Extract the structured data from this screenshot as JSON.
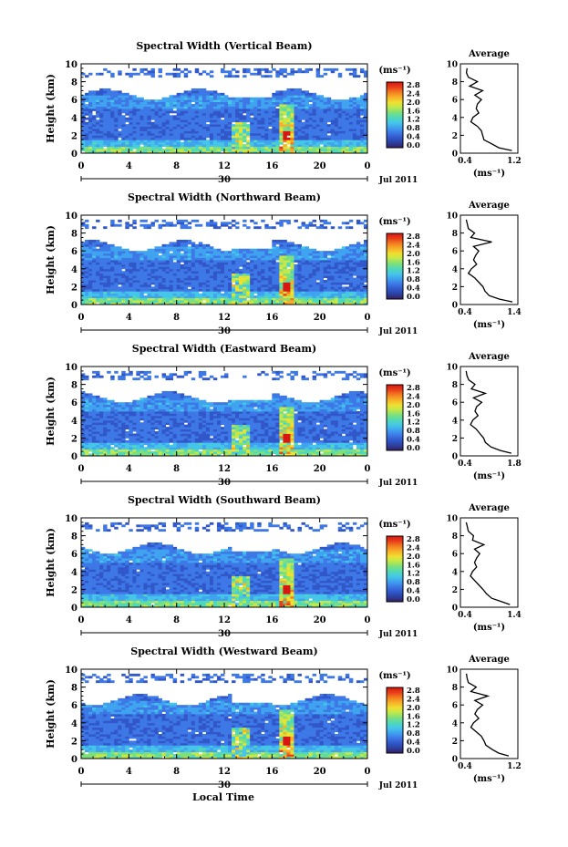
{
  "figure": {
    "shared_x_label": "Local Time",
    "date_label": "Jul 2011",
    "day_label": "30"
  },
  "colorbar": {
    "unit": "(ms⁻¹)",
    "ticks": [
      "0.0",
      "0.4",
      "0.8",
      "1.2",
      "1.6",
      "2.0",
      "2.4",
      "2.8"
    ],
    "colors": [
      "#3a1c5c",
      "#2b3f9e",
      "#3157c9",
      "#3d78e6",
      "#3fa3f0",
      "#45c6e8",
      "#50d9b8",
      "#7ee07a",
      "#c2e84a",
      "#f0e030",
      "#f7b028",
      "#f37a1f",
      "#e8401a",
      "#d81612"
    ],
    "range": [
      0.0,
      3.0
    ]
  },
  "panels": [
    {
      "title": "Spectral Width (Vertical Beam)",
      "avg_title": "Average",
      "avg_xlabel": "(ms⁻¹)",
      "avg_ticks": [
        "0.4",
        "1.2"
      ]
    },
    {
      "title": "Spectral Width (Northward Beam)",
      "avg_title": "Average",
      "avg_xlabel": "(ms⁻¹)",
      "avg_ticks": [
        "0.4",
        "1.4"
      ]
    },
    {
      "title": "Spectral Width (Eastward Beam)",
      "avg_title": "Average",
      "avg_xlabel": "(ms⁻¹)",
      "avg_ticks": [
        "0.4",
        "1.8"
      ]
    },
    {
      "title": "Spectral Width (Southward Beam)",
      "avg_title": "Average",
      "avg_xlabel": "(ms⁻¹)",
      "avg_ticks": [
        "0.4",
        "1.4"
      ]
    },
    {
      "title": "Spectral Width (Westward Beam)",
      "avg_title": "Average",
      "avg_xlabel": "(ms⁻¹)",
      "avg_ticks": [
        "0.4",
        "1.2"
      ]
    }
  ],
  "chart_data": [
    {
      "type": "heatmap",
      "title": "Spectral Width (Vertical Beam)",
      "ylabel": "Height (km)",
      "x_ticks": [
        "0",
        "4",
        "8",
        "12",
        "16",
        "20",
        "0"
      ],
      "y_ticks": [
        "0",
        "2",
        "4",
        "6",
        "8",
        "10"
      ],
      "ylim": [
        0,
        10
      ],
      "xlim": [
        0,
        24
      ],
      "grid": false,
      "colorbar_range": [
        0.0,
        3.0
      ],
      "avg_profile": {
        "xlim": [
          0.4,
          1.2
        ],
        "height": [
          0.3,
          0.6,
          1.0,
          1.5,
          2.0,
          2.5,
          3.0,
          3.5,
          4.0,
          4.5,
          5.0,
          5.5,
          6.0,
          6.5,
          7.0,
          7.5,
          8.0,
          8.5,
          9.0,
          9.5
        ],
        "value": [
          1.15,
          0.95,
          0.85,
          0.72,
          0.7,
          0.68,
          0.62,
          0.52,
          0.55,
          0.64,
          0.6,
          0.62,
          0.68,
          0.58,
          0.7,
          0.5,
          0.62,
          0.48,
          0.45,
          0.46
        ]
      }
    },
    {
      "type": "heatmap",
      "title": "Spectral Width (Northward Beam)",
      "ylabel": "Height (km)",
      "x_ticks": [
        "0",
        "4",
        "8",
        "12",
        "16",
        "20",
        "0"
      ],
      "y_ticks": [
        "0",
        "2",
        "4",
        "6",
        "8",
        "10"
      ],
      "ylim": [
        0,
        10
      ],
      "xlim": [
        0,
        24
      ],
      "grid": false,
      "colorbar_range": [
        0.0,
        3.0
      ],
      "avg_profile": {
        "xlim": [
          0.4,
          1.4
        ],
        "height": [
          0.3,
          0.6,
          1.0,
          1.5,
          2.0,
          2.5,
          3.0,
          3.5,
          4.0,
          4.5,
          5.0,
          5.5,
          6.0,
          6.5,
          7.0,
          7.5,
          8.0,
          8.5,
          9.0,
          9.5
        ],
        "value": [
          1.35,
          1.1,
          0.9,
          0.82,
          0.78,
          0.7,
          0.62,
          0.5,
          0.56,
          0.66,
          0.6,
          0.64,
          0.7,
          0.6,
          0.95,
          0.55,
          0.62,
          0.5,
          0.48,
          0.46
        ]
      }
    },
    {
      "type": "heatmap",
      "title": "Spectral Width (Eastward Beam)",
      "ylabel": "Height (km)",
      "x_ticks": [
        "0",
        "4",
        "8",
        "12",
        "16",
        "20",
        "0"
      ],
      "y_ticks": [
        "0",
        "2",
        "4",
        "6",
        "8",
        "10"
      ],
      "ylim": [
        0,
        10
      ],
      "xlim": [
        0,
        24
      ],
      "grid": false,
      "colorbar_range": [
        0.0,
        3.0
      ],
      "avg_profile": {
        "xlim": [
          0.4,
          1.8
        ],
        "height": [
          0.3,
          0.6,
          1.0,
          1.5,
          2.0,
          2.5,
          3.0,
          3.5,
          4.0,
          4.5,
          5.0,
          5.5,
          6.0,
          6.5,
          7.0,
          7.5,
          8.0,
          8.5,
          9.0,
          9.5
        ],
        "value": [
          1.7,
          1.4,
          1.15,
          1.0,
          0.95,
          0.85,
          0.75,
          0.6,
          0.66,
          0.8,
          0.72,
          0.76,
          0.9,
          0.68,
          1.0,
          0.62,
          0.72,
          0.55,
          0.5,
          0.48
        ]
      }
    },
    {
      "type": "heatmap",
      "title": "Spectral Width (Southward Beam)",
      "ylabel": "Height (km)",
      "x_ticks": [
        "0",
        "4",
        "8",
        "12",
        "16",
        "20",
        "0"
      ],
      "y_ticks": [
        "0",
        "2",
        "4",
        "6",
        "8",
        "10"
      ],
      "ylim": [
        0,
        10
      ],
      "xlim": [
        0,
        24
      ],
      "grid": false,
      "colorbar_range": [
        0.0,
        3.0
      ],
      "avg_profile": {
        "xlim": [
          0.4,
          1.4
        ],
        "height": [
          0.3,
          0.6,
          1.0,
          1.5,
          2.0,
          2.5,
          3.0,
          3.5,
          4.0,
          4.5,
          5.0,
          5.5,
          6.0,
          6.5,
          7.0,
          7.5,
          8.0,
          8.5,
          9.0,
          9.5
        ],
        "value": [
          1.3,
          1.15,
          0.95,
          0.85,
          0.78,
          0.7,
          0.62,
          0.54,
          0.58,
          0.66,
          0.62,
          0.66,
          0.72,
          0.62,
          0.8,
          0.58,
          0.6,
          0.5,
          0.48,
          0.46
        ]
      }
    },
    {
      "type": "heatmap",
      "title": "Spectral Width (Westward Beam)",
      "ylabel": "Height (km)",
      "x_ticks": [
        "0",
        "4",
        "8",
        "12",
        "16",
        "20",
        "0"
      ],
      "y_ticks": [
        "0",
        "2",
        "4",
        "6",
        "8",
        "10"
      ],
      "ylim": [
        0,
        10
      ],
      "xlim": [
        0,
        24
      ],
      "grid": false,
      "colorbar_range": [
        0.0,
        3.0
      ],
      "avg_profile": {
        "xlim": [
          0.4,
          1.2
        ],
        "height": [
          0.3,
          0.6,
          1.0,
          1.5,
          2.0,
          2.5,
          3.0,
          3.5,
          4.0,
          4.5,
          5.0,
          5.5,
          6.0,
          6.5,
          7.0,
          7.5,
          8.0,
          8.5,
          9.0,
          9.5
        ],
        "value": [
          1.1,
          0.95,
          0.85,
          0.75,
          0.72,
          0.68,
          0.6,
          0.52,
          0.56,
          0.64,
          0.58,
          0.62,
          0.7,
          0.58,
          0.78,
          0.52,
          0.6,
          0.48,
          0.46,
          0.45
        ]
      }
    }
  ]
}
